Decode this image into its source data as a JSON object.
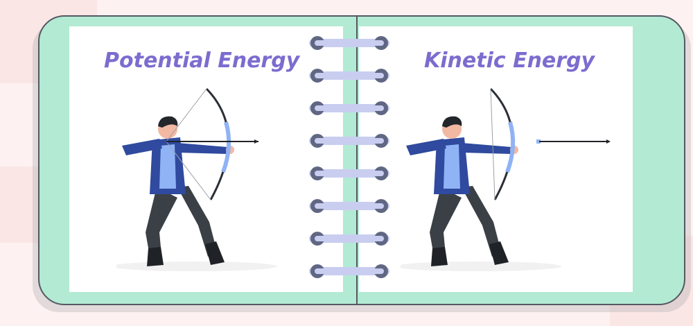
{
  "notebook": {
    "left_page": {
      "title": "Potential Energy",
      "illustration": "archer-drawing-bow-icon"
    },
    "right_page": {
      "title": "Kinetic Energy",
      "illustration": "archer-released-arrow-icon"
    },
    "spiral_rings": 8
  },
  "colors": {
    "background": "#fdf1f1",
    "cover": "#b3ead4",
    "title": "#7c6ccf",
    "jacket": "#2f4a9e",
    "shirt": "#8fb3f5",
    "pants": "#3b4046",
    "bow": "#8fb3f5",
    "ring_hole": "#5f6783",
    "ring_wire": "#c9cdf0"
  }
}
